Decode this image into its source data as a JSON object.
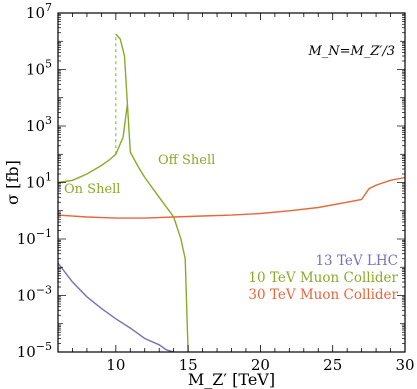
{
  "chart_data": {
    "type": "line",
    "xlabel": "M_Z′ [TeV]",
    "ylabel": "σ [fb]",
    "xlim": [
      6,
      30
    ],
    "ylim_log10": [
      -5,
      7
    ],
    "y_scale": "log",
    "x_ticks": [
      10,
      15,
      20,
      25,
      30
    ],
    "y_ticks_exp": [
      -5,
      -3,
      -1,
      1,
      3,
      5,
      7
    ],
    "annotation": "M_N=M_Z′/3",
    "labels": {
      "on_shell": "On Shell",
      "off_shell": "Off Shell"
    },
    "legend_position": "bottom-right",
    "series": [
      {
        "name": "13 TeV LHC",
        "color": "#7b70b8",
        "points": [
          [
            6,
            0.014
          ],
          [
            7,
            0.003
          ],
          [
            8,
            0.0009
          ],
          [
            9,
            0.00035
          ],
          [
            10,
            0.00015
          ],
          [
            11,
            7e-05
          ],
          [
            12,
            3e-05
          ],
          [
            13,
            1.8e-05
          ],
          [
            13.5,
            1.2e-05
          ],
          [
            14,
            1e-05
          ]
        ]
      },
      {
        "name": "10 TeV Muon Collider",
        "color": "#8aaa2b",
        "points": [
          [
            6,
            10
          ],
          [
            7,
            12
          ],
          [
            8,
            20
          ],
          [
            9,
            40
          ],
          [
            9.5,
            60
          ],
          [
            10,
            100
          ],
          [
            10.5,
            400
          ],
          [
            10.8,
            6000
          ],
          [
            11,
            120
          ],
          [
            11.5,
            40
          ],
          [
            12,
            15
          ],
          [
            13,
            3
          ],
          [
            14,
            0.6
          ],
          [
            14.5,
            0.1
          ],
          [
            14.8,
            0.02
          ],
          [
            15,
            1e-05
          ]
        ]
      },
      {
        "name": "30 TeV Muon Collider",
        "color": "#e8663a",
        "points": [
          [
            6,
            0.7
          ],
          [
            8,
            0.6
          ],
          [
            10,
            0.55
          ],
          [
            12,
            0.55
          ],
          [
            14,
            0.6
          ],
          [
            16,
            0.65
          ],
          [
            18,
            0.7
          ],
          [
            20,
            0.8
          ],
          [
            22,
            1.0
          ],
          [
            24,
            1.3
          ],
          [
            26,
            2.0
          ],
          [
            27,
            2.5
          ],
          [
            27.5,
            6
          ],
          [
            28,
            8
          ],
          [
            29,
            12
          ],
          [
            30,
            15
          ]
        ]
      }
    ],
    "dashed_segment": {
      "series": "10 TeV Muon Collider",
      "x": 10,
      "y_from": 100,
      "y_to": 1800000.0
    },
    "upper_branch": {
      "x": [
        10,
        10.3,
        10.6,
        10.8
      ],
      "y": [
        1800000.0,
        1200000.0,
        300000.0,
        6000
      ]
    }
  }
}
